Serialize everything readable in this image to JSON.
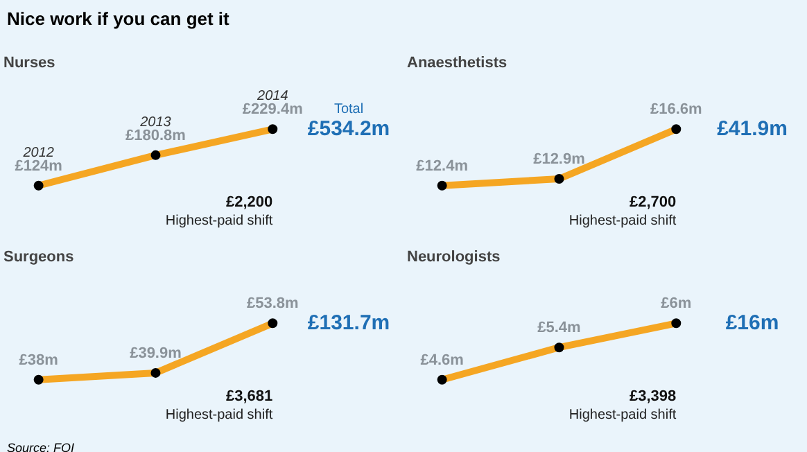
{
  "chart_data": [
    {
      "type": "other",
      "title": "Nice work if you can get it",
      "annotations": [
        "Source: FOI"
      ]
    },
    {
      "type": "line",
      "title": "Nurses",
      "categories": [
        "2012",
        "2013",
        "2014"
      ],
      "series": [
        {
          "color": "#f5a623",
          "values": [
            124,
            180.8,
            229.4
          ],
          "value_labels": [
            "£124m",
            "£180.8m",
            "£229.4m"
          ]
        }
      ],
      "marker": "circle",
      "annotations": [
        "£2,200",
        "Highest-paid shift",
        "Total",
        "£534.2m"
      ]
    },
    {
      "type": "line",
      "title": "Anaesthetists",
      "categories": [
        null,
        null,
        null
      ],
      "series": [
        {
          "color": "#f5a623",
          "values": [
            12.4,
            12.9,
            16.6
          ],
          "value_labels": [
            "£12.4m",
            "£12.9m",
            "£16.6m"
          ]
        }
      ],
      "marker": "circle",
      "annotations": [
        "£2,700",
        "Highest-paid shift",
        "£41.9m"
      ]
    },
    {
      "type": "line",
      "title": "Surgeons",
      "categories": [
        null,
        null,
        null
      ],
      "series": [
        {
          "color": "#f5a623",
          "values": [
            38,
            39.9,
            53.8
          ],
          "value_labels": [
            "£38m",
            "£39.9m",
            "£53.8m"
          ]
        }
      ],
      "marker": "circle",
      "annotations": [
        "£3,681",
        "Highest-paid shift",
        "£131.7m"
      ]
    },
    {
      "type": "line",
      "title": "Neurologists",
      "categories": [
        null,
        null,
        null
      ],
      "series": [
        {
          "color": "#f5a623",
          "values": [
            4.6,
            5.4,
            6
          ],
          "value_labels": [
            "£4.6m",
            "£5.4m",
            "£6m"
          ]
        }
      ],
      "marker": "circle",
      "annotations": [
        "£3,398",
        "Highest-paid shift",
        "£16m"
      ]
    }
  ]
}
